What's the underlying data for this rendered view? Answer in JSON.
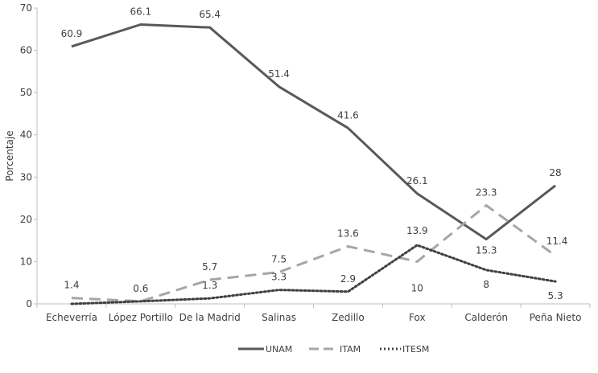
{
  "chart_data": {
    "type": "line",
    "categories": [
      "Echeverría",
      "López Portillo",
      "De la Madrid",
      "Salinas",
      "Zedillo",
      "Fox",
      "Calderón",
      "Peña Nieto"
    ],
    "series": [
      {
        "name": "UNAM",
        "values": [
          60.9,
          66.1,
          65.4,
          51.4,
          41.6,
          26.1,
          15.3,
          28
        ],
        "labels": [
          "60.9",
          "66.1",
          "65.4",
          "51.4",
          "41.6",
          "26.1",
          "15.3",
          "28"
        ],
        "color": "#595959",
        "style": "solid"
      },
      {
        "name": "ITAM",
        "values": [
          1.4,
          0.6,
          5.7,
          7.5,
          13.6,
          10,
          23.3,
          11.4
        ],
        "labels": [
          "1.4",
          "0.6",
          "5.7",
          "7.5",
          "13.6",
          "10",
          "23.3",
          "11.4"
        ],
        "color": "#a6a6a6",
        "style": "dashed"
      },
      {
        "name": "ITESM",
        "values": [
          0,
          0.6,
          1.3,
          3.3,
          2.9,
          13.9,
          8,
          5.3
        ],
        "labels": [
          "",
          "",
          "1.3",
          "3.3",
          "2.9",
          "13.9",
          "8",
          "5.3"
        ],
        "color": "#404040",
        "style": "dotted"
      }
    ],
    "ylabel": "Porcentaje",
    "xlabel": "",
    "ylim": [
      0,
      70
    ],
    "yticks": [
      "0",
      "10",
      "20",
      "30",
      "40",
      "50",
      "60",
      "70"
    ],
    "grid": false,
    "legend_position": "bottom"
  }
}
